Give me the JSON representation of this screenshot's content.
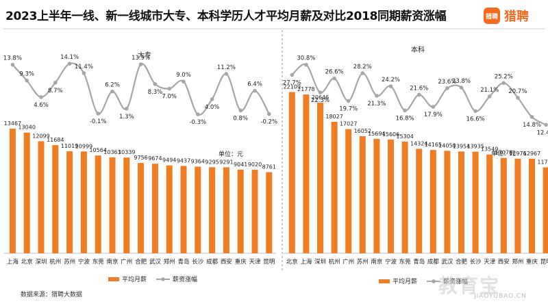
{
  "title": "2023上半年一线、新一线城市大专、本科学历人才平均月薪及对比2018同期薪资涨幅",
  "logo": {
    "mark": "猎聘",
    "text": "猎聘"
  },
  "source": "数据来源：猎聘大数据",
  "watermark": {
    "text": "教育宝",
    "url": "JIAOYUBAO.CN"
  },
  "colors": {
    "bar": "#f07c24",
    "line": "#a6a6a6",
    "brand": "#f46a1f"
  },
  "chart_data": [
    {
      "type": "bar+line",
      "title": "大专",
      "unit": "单位：元",
      "categories": [
        "上海",
        "北京",
        "深圳",
        "杭州",
        "苏州",
        "宁波",
        "东莞",
        "南京",
        "广州",
        "合肥",
        "武汉",
        "郑州",
        "青岛",
        "长沙",
        "成都",
        "西安",
        "重庆",
        "天津",
        "昆明"
      ],
      "series": [
        {
          "name": "平均月薪",
          "kind": "bar",
          "values": [
            13467,
            13040,
            12099,
            11684,
            11019,
            10999,
            10564,
            10363,
            10339,
            9756,
            9674,
            9494,
            9437,
            9364,
            9295,
            9291,
            9041,
            9020,
            8761
          ],
          "labels": [
            "13467",
            "13040",
            "12099",
            "11684",
            "11019",
            "10999",
            "10564",
            "10363",
            "10339",
            "9756",
            "9674",
            "9494",
            "9437",
            "9364",
            "9295",
            "9291",
            "9041",
            "9020",
            "8761"
          ]
        },
        {
          "name": "薪资涨幅",
          "kind": "line",
          "values": [
            13.8,
            9.3,
            4.6,
            8.7,
            14.1,
            11.4,
            -0.1,
            6.2,
            1.3,
            13.9,
            8.3,
            7.0,
            9.0,
            -0.3,
            4.0,
            11.2,
            0.8,
            6.4,
            -0.2
          ],
          "labels": [
            "13.8%",
            "9.3%",
            "4.6%",
            "8.7%",
            "14.1%",
            "11.4%",
            "-0.1%",
            "6.2%",
            "1.3%",
            "13.9%",
            "8.3%",
            "7.0%",
            "9.0%",
            "-0.3%",
            "4.0%",
            "11.2%",
            "0.8%",
            "6.4%",
            "-0.2%"
          ]
        }
      ],
      "legend": [
        "平均月薪",
        "薪资涨幅"
      ]
    },
    {
      "type": "bar+line",
      "title": "本科",
      "unit": "单位：元",
      "categories": [
        "北京",
        "上海",
        "深圳",
        "杭州",
        "广州",
        "苏州",
        "南京",
        "宁波",
        "东莞",
        "青岛",
        "成都",
        "武汉",
        "合肥",
        "长沙",
        "天津",
        "西安",
        "郑州",
        "重庆",
        "昆明"
      ],
      "series": [
        {
          "name": "平均月薪",
          "kind": "bar",
          "values": [
            22109,
            21778,
            20646,
            18027,
            17027,
            16052,
            15694,
            15606,
            15304,
            14324,
            14165,
            14050,
            13954,
            13935,
            13549,
            13078,
            12976,
            12967,
            11783
          ],
          "labels": [
            "22109",
            "21778",
            "20646",
            "18027",
            "17027",
            "16052",
            "15694",
            "15606",
            "15304",
            "14324",
            "14165",
            "14050",
            "13954",
            "13935",
            "13549",
            "13078",
            "12976",
            "12967",
            "11783"
          ]
        },
        {
          "name": "薪资涨幅",
          "kind": "line",
          "values": [
            27.7,
            30.8,
            22.3,
            26.6,
            19.7,
            28.2,
            21.3,
            24.2,
            16.8,
            21.6,
            17.9,
            23.6,
            23.8,
            16.6,
            21.1,
            25.2,
            20.7,
            14.8,
            12.4
          ],
          "labels": [
            "27.7%",
            "30.8%",
            "22.3%",
            "26.6%",
            "19.7%",
            "28.2%",
            "21.3%",
            "24.2%",
            "16.8%",
            "21.6%",
            "17.9%",
            "23.6%",
            "23.8%",
            "16.6%",
            "21.1%",
            "25.2%",
            "20.7%",
            "14.8%",
            "12.4%"
          ]
        }
      ],
      "legend": [
        "平均月薪",
        "薪资涨幅"
      ]
    }
  ]
}
